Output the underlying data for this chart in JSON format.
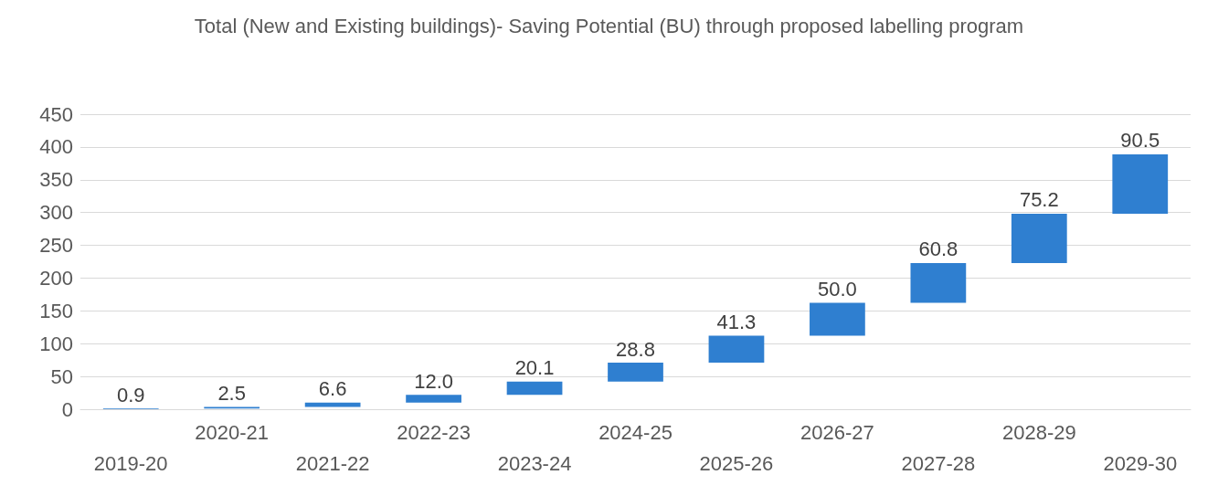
{
  "chart_data": {
    "type": "bar",
    "title": "Total (New and Existing buildings)- Saving Potential (BU) through proposed labelling program",
    "categories": [
      "2019-20",
      "2020-21",
      "2021-22",
      "2022-23",
      "2023-24",
      "2024-25",
      "2025-26",
      "2026-27",
      "2027-28",
      "2028-29",
      "2029-30"
    ],
    "values": [
      0.9,
      2.5,
      6.6,
      12.0,
      20.1,
      28.8,
      41.3,
      50.0,
      60.8,
      75.2,
      90.5
    ],
    "base": [
      0,
      0.9,
      3.4,
      10.0,
      22.0,
      42.1,
      70.9,
      112.2,
      162.2,
      223.0,
      298.2
    ],
    "color": "#2f7fd0",
    "value_labels": [
      "0.9",
      "2.5",
      "6.6",
      "12.0",
      "20.1",
      "28.8",
      "41.3",
      "50.0",
      "60.8",
      "75.2",
      "90.5"
    ],
    "ylim": [
      0,
      450
    ],
    "yticks": [
      0,
      50,
      100,
      150,
      200,
      250,
      300,
      350,
      400,
      450
    ],
    "grid": "y"
  }
}
